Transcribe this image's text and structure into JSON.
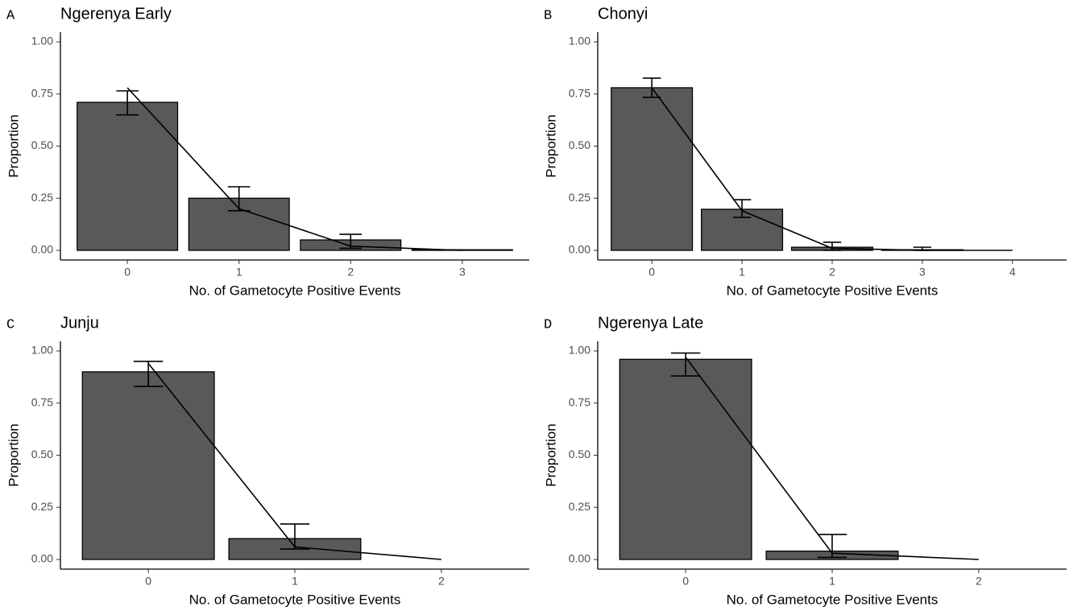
{
  "chart_data": [
    {
      "type": "bar",
      "panel": "A",
      "title": "Ngerenya Early",
      "x_label": "No. of Gametocyte Positive Events",
      "y_label": "Proportion",
      "categories": [
        "0",
        "1",
        "2",
        "3"
      ],
      "values": [
        0.71,
        0.25,
        0.05,
        0.003
      ],
      "error_low": [
        0.65,
        0.19,
        0.01,
        null
      ],
      "error_high": [
        0.765,
        0.305,
        0.077,
        null
      ],
      "line_values": [
        0.78,
        0.2,
        0.02,
        0.0
      ],
      "color": "#595959",
      "line_color": "#000000",
      "ylim": [
        0,
        1
      ],
      "yticks": [
        {
          "value": 0,
          "label": "0.00"
        },
        {
          "value": 0.25,
          "label": "0.25"
        },
        {
          "value": 0.5,
          "label": "0.50"
        },
        {
          "value": 0.75,
          "label": "0.75"
        },
        {
          "value": 1,
          "label": "1.00"
        }
      ]
    },
    {
      "type": "bar",
      "panel": "B",
      "title": "Chonyi",
      "x_label": "No. of Gametocyte Positive Events",
      "y_label": "Proportion",
      "categories": [
        "0",
        "1",
        "2",
        "3",
        "4"
      ],
      "values": [
        0.78,
        0.197,
        0.015,
        0.003,
        0.0
      ],
      "error_low": [
        0.734,
        0.158,
        0.0,
        0.0,
        null
      ],
      "error_high": [
        0.826,
        0.243,
        0.039,
        0.015,
        null
      ],
      "line_values": [
        0.78,
        0.19,
        0.01,
        0.0,
        0.0
      ],
      "color": "#595959",
      "line_color": "#000000",
      "ylim": [
        0,
        1
      ],
      "yticks": [
        {
          "value": 0,
          "label": "0.00"
        },
        {
          "value": 0.25,
          "label": "0.25"
        },
        {
          "value": 0.5,
          "label": "0.50"
        },
        {
          "value": 0.75,
          "label": "0.75"
        },
        {
          "value": 1,
          "label": "1.00"
        }
      ]
    },
    {
      "type": "bar",
      "panel": "C",
      "title": "Junju",
      "x_label": "No. of Gametocyte Positive Events",
      "y_label": "Proportion",
      "categories": [
        "0",
        "1",
        "2"
      ],
      "values": [
        0.9,
        0.1,
        0.0
      ],
      "error_low": [
        0.83,
        0.05,
        null
      ],
      "error_high": [
        0.95,
        0.17,
        null
      ],
      "line_values": [
        0.94,
        0.06,
        0.0
      ],
      "color": "#595959",
      "line_color": "#000000",
      "ylim": [
        0,
        1
      ],
      "yticks": [
        {
          "value": 0,
          "label": "0.00"
        },
        {
          "value": 0.25,
          "label": "0.25"
        },
        {
          "value": 0.5,
          "label": "0.50"
        },
        {
          "value": 0.75,
          "label": "0.75"
        },
        {
          "value": 1,
          "label": "1.00"
        }
      ]
    },
    {
      "type": "bar",
      "panel": "D",
      "title": "Ngerenya Late",
      "x_label": "No. of Gametocyte Positive Events",
      "y_label": "Proportion",
      "categories": [
        "0",
        "1",
        "2"
      ],
      "values": [
        0.96,
        0.04,
        0.0
      ],
      "error_low": [
        0.88,
        0.01,
        null
      ],
      "error_high": [
        0.99,
        0.12,
        null
      ],
      "line_values": [
        0.97,
        0.03,
        0.0
      ],
      "color": "#595959",
      "line_color": "#000000",
      "ylim": [
        0,
        1
      ],
      "yticks": [
        {
          "value": 0,
          "label": "0.00"
        },
        {
          "value": 0.25,
          "label": "0.25"
        },
        {
          "value": 0.5,
          "label": "0.50"
        },
        {
          "value": 0.75,
          "label": "0.75"
        },
        {
          "value": 1,
          "label": "1.00"
        }
      ]
    }
  ]
}
